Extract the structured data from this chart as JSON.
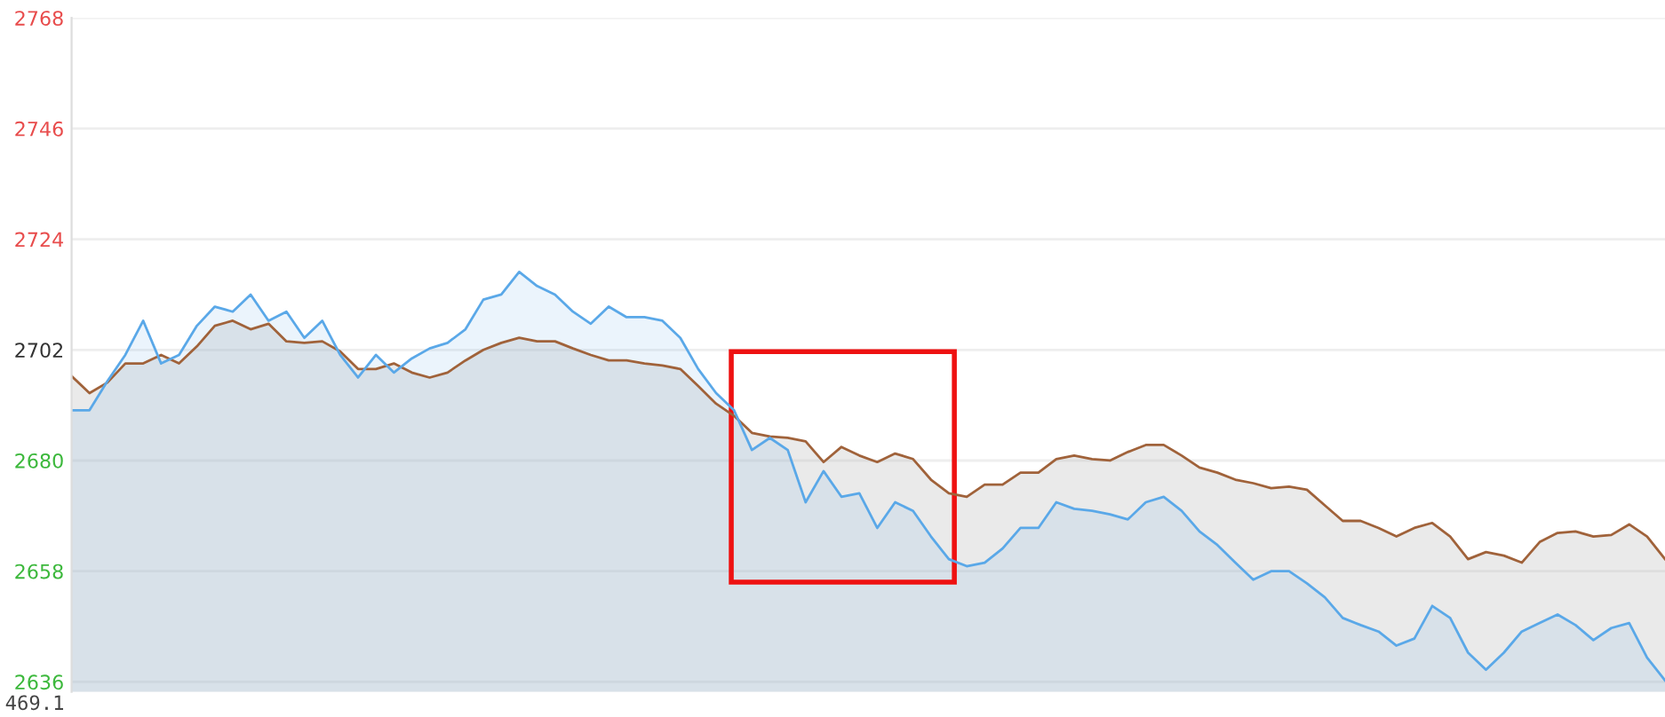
{
  "chart_data": {
    "type": "area",
    "categories": [
      null,
      null,
      null,
      null,
      null,
      null,
      null,
      null,
      null,
      null,
      null,
      null,
      null,
      null,
      null,
      null,
      null,
      null,
      null,
      null,
      null,
      null,
      null,
      null,
      null,
      null,
      null,
      null,
      null,
      null,
      null,
      null,
      null,
      null,
      null,
      null,
      null,
      null,
      null,
      null,
      null,
      null,
      null,
      null,
      null,
      null,
      null,
      null,
      null,
      null,
      null,
      null,
      null,
      null,
      null,
      null,
      null,
      null,
      null,
      null,
      null,
      null,
      null,
      null,
      null,
      null,
      null,
      null,
      null,
      null,
      null,
      null,
      null,
      null,
      null,
      null,
      null,
      null,
      null,
      null,
      null,
      null,
      null,
      null,
      null,
      null,
      null,
      null,
      null,
      null
    ],
    "series": [
      {
        "color": "#a0623a",
        "values": [
          2696.8,
          2693.4,
          2695.5,
          2699.3,
          2699.3,
          2701.0,
          2699.3,
          2702.7,
          2706.8,
          2707.8,
          2706.1,
          2707.2,
          2703.7,
          2703.4,
          2703.7,
          2701.7,
          2698.2,
          2698.2,
          2699.3,
          2697.5,
          2696.5,
          2697.5,
          2699.9,
          2702.0,
          2703.4,
          2704.4,
          2703.7,
          2703.7,
          2702.3,
          2701.0,
          2699.9,
          2699.9,
          2699.3,
          2698.9,
          2698.2,
          2694.8,
          2691.3,
          2688.9,
          2685.5,
          2684.8,
          2684.5,
          2683.8,
          2679.7,
          2682.7,
          2681.0,
          2679.7,
          2681.4,
          2680.3,
          2676.2,
          2673.5,
          2672.8,
          2675.2,
          2675.2,
          2677.6,
          2677.6,
          2680.3,
          2681.0,
          2680.3,
          2680.0,
          2681.7,
          2683.1,
          2683.1,
          2681.0,
          2678.6,
          2677.6,
          2676.2,
          2675.5,
          2674.5,
          2674.8,
          2674.2,
          2671.1,
          2668.0,
          2668.0,
          2666.6,
          2664.9,
          2666.6,
          2667.6,
          2664.9,
          2660.4,
          2661.8,
          2661.1,
          2659.7,
          2663.8,
          2665.6,
          2665.9,
          2664.9,
          2665.2,
          2667.3,
          2664.9,
          2660.4
        ]
      },
      {
        "color": "#5aa8e8",
        "values": [
          2690.0,
          2690.0,
          2695.8,
          2701.0,
          2707.8,
          2699.3,
          2701.0,
          2706.8,
          2710.6,
          2709.6,
          2713.0,
          2707.8,
          2709.6,
          2704.4,
          2707.8,
          2701.0,
          2696.5,
          2701.0,
          2697.5,
          2700.3,
          2702.3,
          2703.4,
          2706.1,
          2712.0,
          2713.0,
          2717.5,
          2714.7,
          2713.0,
          2709.6,
          2707.2,
          2710.6,
          2708.5,
          2708.5,
          2707.8,
          2704.4,
          2698.2,
          2693.4,
          2690.0,
          2682.1,
          2684.5,
          2682.1,
          2671.7,
          2677.9,
          2672.8,
          2673.5,
          2666.6,
          2671.7,
          2670.0,
          2664.9,
          2660.4,
          2659.0,
          2659.7,
          2662.5,
          2666.6,
          2666.6,
          2671.7,
          2670.4,
          2670.0,
          2669.3,
          2668.3,
          2671.7,
          2672.8,
          2670.0,
          2665.9,
          2663.2,
          2659.7,
          2656.3,
          2658.0,
          2658.0,
          2655.6,
          2652.8,
          2648.7,
          2647.3,
          2646.0,
          2643.2,
          2644.6,
          2651.1,
          2648.7,
          2641.8,
          2638.4,
          2641.8,
          2646.0,
          2647.7,
          2649.4,
          2647.3,
          2644.3,
          2646.7,
          2647.7,
          2640.8,
          2636.3
        ]
      }
    ],
    "ylim": [
      2634,
      2768
    ],
    "yticks": [
      2636,
      2658,
      2680,
      2702,
      2724,
      2746,
      2768
    ],
    "grid": "y",
    "annotations": [
      "469.1"
    ]
  }
}
